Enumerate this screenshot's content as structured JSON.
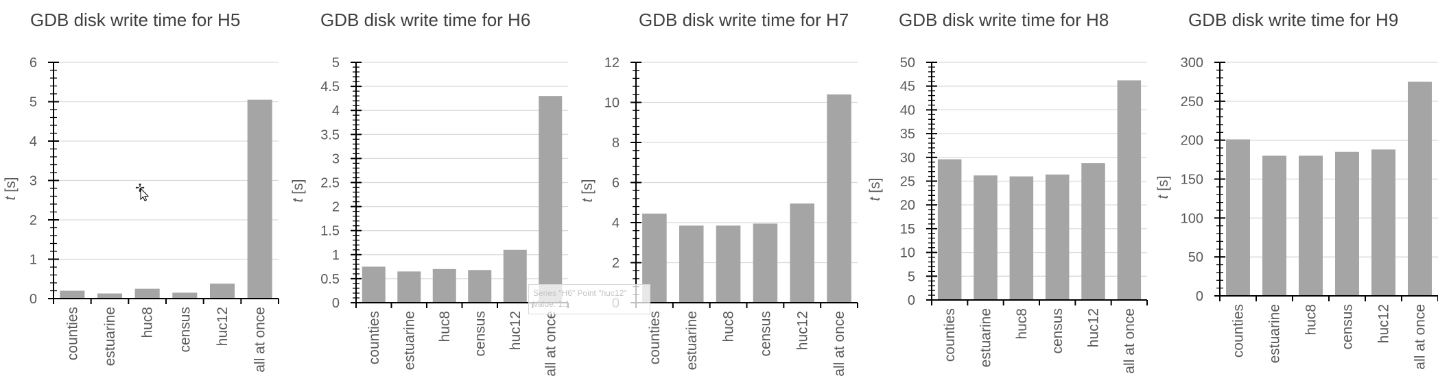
{
  "colors": {
    "bar": "#a5a5a5",
    "axis": "#000000",
    "grid": "#d9d9d9",
    "text": "#595959",
    "title": "#404040"
  },
  "ylabel_var": "t",
  "ylabel_unit": " [s]",
  "chart_data": [
    {
      "type": "bar",
      "title": "GDB disk write time for H5",
      "categories": [
        "counties",
        "estuarine",
        "huc8",
        "census",
        "huc12",
        "all at once"
      ],
      "values": [
        0.2,
        0.13,
        0.25,
        0.15,
        0.38,
        5.05
      ],
      "ylim": [
        0,
        6
      ],
      "yticks": [
        "0",
        "1",
        "2",
        "3",
        "4",
        "5",
        "6"
      ],
      "grid": true
    },
    {
      "type": "bar",
      "title": "GDB disk write time for H6",
      "categories": [
        "counties",
        "estuarine",
        "huc8",
        "census",
        "huc12",
        "all at once"
      ],
      "values": [
        0.75,
        0.65,
        0.7,
        0.68,
        1.1,
        4.3
      ],
      "ylim": [
        0,
        5
      ],
      "yticks": [
        "0",
        "0.5",
        "1",
        "1.5",
        "2",
        "2.5",
        "3",
        "3.5",
        "4",
        "4.5",
        "5"
      ],
      "grid": true
    },
    {
      "type": "bar",
      "title": "GDB disk write time for H7",
      "categories": [
        "counties",
        "estuarine",
        "huc8",
        "census",
        "huc12",
        "all at once"
      ],
      "values": [
        4.45,
        3.85,
        3.85,
        3.95,
        4.95,
        10.4
      ],
      "ylim": [
        0,
        12
      ],
      "yticks": [
        "0",
        "2",
        "4",
        "6",
        "8",
        "10",
        "12"
      ],
      "grid": true
    },
    {
      "type": "bar",
      "title": "GDB disk write time for H8",
      "categories": [
        "counties",
        "estuarine",
        "huc8",
        "census",
        "huc12",
        "all at once"
      ],
      "values": [
        29.6,
        26.2,
        26.0,
        26.4,
        28.8,
        46.2
      ],
      "ylim": [
        0,
        50
      ],
      "yticks": [
        "0",
        "5",
        "10",
        "15",
        "20",
        "25",
        "30",
        "35",
        "40",
        "45",
        "50"
      ],
      "grid": true
    },
    {
      "type": "bar",
      "title": "GDB disk write time for H9",
      "categories": [
        "counties",
        "estuarine",
        "huc8",
        "census",
        "huc12",
        "all at once"
      ],
      "values": [
        201,
        180,
        180,
        185,
        188,
        275
      ],
      "ylim": [
        0,
        300
      ],
      "yticks": [
        "0",
        "50",
        "100",
        "150",
        "200",
        "250",
        "300"
      ],
      "grid": true
    }
  ],
  "tooltip": {
    "line1": "Series \"H6\" Point \"huc12\"",
    "line2": "Value: 1.1"
  }
}
